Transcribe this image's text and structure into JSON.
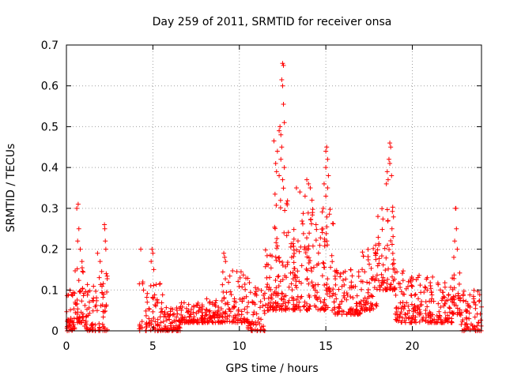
{
  "chart_data": {
    "type": "scatter",
    "title": "Day 259 of 2011, SRMTID for receiver onsa",
    "xlabel": "GPS time / hours",
    "ylabel": "SRMTID / TECUs",
    "xlim": [
      0,
      24
    ],
    "ylim": [
      0,
      0.7
    ],
    "grid": true,
    "marker": "plus",
    "series_color": "#ff0000",
    "xticks": [
      0,
      5,
      10,
      15,
      20
    ],
    "xtick_labels": [
      "0",
      "5",
      "10",
      "15",
      "20"
    ],
    "yticks": [
      0,
      0.1,
      0.2,
      0.3,
      0.4,
      0.5,
      0.6,
      0.7
    ],
    "ytick_labels": [
      "0",
      "0.1",
      "0.2",
      "0.3",
      "0.4",
      "0.5",
      "0.6",
      "0.7"
    ],
    "density_segments": [
      {
        "t0": 0.0,
        "t1": 0.5,
        "lo": 0.0,
        "hi": 0.1,
        "n": 40
      },
      {
        "t0": 0.5,
        "t1": 1.0,
        "lo": 0.02,
        "hi": 0.16,
        "n": 40
      },
      {
        "t0": 1.0,
        "t1": 1.6,
        "lo": 0.0,
        "hi": 0.12,
        "n": 40
      },
      {
        "t0": 1.6,
        "t1": 2.4,
        "lo": 0.0,
        "hi": 0.15,
        "n": 45
      },
      {
        "t0": 4.2,
        "t1": 4.6,
        "lo": 0.0,
        "hi": 0.12,
        "n": 14
      },
      {
        "t0": 4.6,
        "t1": 5.6,
        "lo": 0.0,
        "hi": 0.12,
        "n": 60
      },
      {
        "t0": 5.6,
        "t1": 6.6,
        "lo": 0.0,
        "hi": 0.06,
        "n": 70
      },
      {
        "t0": 6.6,
        "t1": 8.0,
        "lo": 0.02,
        "hi": 0.07,
        "n": 90
      },
      {
        "t0": 8.0,
        "t1": 9.0,
        "lo": 0.02,
        "hi": 0.08,
        "n": 60
      },
      {
        "t0": 9.0,
        "t1": 10.5,
        "lo": 0.02,
        "hi": 0.15,
        "n": 90
      },
      {
        "t0": 10.5,
        "t1": 11.5,
        "lo": 0.0,
        "hi": 0.13,
        "n": 60
      },
      {
        "t0": 11.5,
        "t1": 12.0,
        "lo": 0.05,
        "hi": 0.2,
        "n": 35
      },
      {
        "t0": 12.0,
        "t1": 12.8,
        "lo": 0.05,
        "hi": 0.35,
        "n": 70
      },
      {
        "t0": 12.8,
        "t1": 13.5,
        "lo": 0.05,
        "hi": 0.25,
        "n": 55
      },
      {
        "t0": 13.5,
        "t1": 14.5,
        "lo": 0.05,
        "hi": 0.3,
        "n": 70
      },
      {
        "t0": 14.5,
        "t1": 15.5,
        "lo": 0.05,
        "hi": 0.3,
        "n": 65
      },
      {
        "t0": 15.5,
        "t1": 17.0,
        "lo": 0.04,
        "hi": 0.15,
        "n": 90
      },
      {
        "t0": 17.0,
        "t1": 18.0,
        "lo": 0.05,
        "hi": 0.22,
        "n": 70
      },
      {
        "t0": 18.0,
        "t1": 18.6,
        "lo": 0.1,
        "hi": 0.3,
        "n": 40
      },
      {
        "t0": 18.6,
        "t1": 19.0,
        "lo": 0.1,
        "hi": 0.35,
        "n": 30
      },
      {
        "t0": 19.0,
        "t1": 20.0,
        "lo": 0.02,
        "hi": 0.15,
        "n": 65
      },
      {
        "t0": 20.0,
        "t1": 21.5,
        "lo": 0.02,
        "hi": 0.14,
        "n": 90
      },
      {
        "t0": 21.5,
        "t1": 22.3,
        "lo": 0.02,
        "hi": 0.12,
        "n": 50
      },
      {
        "t0": 22.3,
        "t1": 22.8,
        "lo": 0.04,
        "hi": 0.15,
        "n": 35
      },
      {
        "t0": 22.8,
        "t1": 24.0,
        "lo": 0.0,
        "hi": 0.1,
        "n": 70
      }
    ],
    "peak_points": [
      {
        "x": 0.6,
        "y": 0.3
      },
      {
        "x": 0.68,
        "y": 0.31
      },
      {
        "x": 0.72,
        "y": 0.25
      },
      {
        "x": 0.65,
        "y": 0.22
      },
      {
        "x": 0.8,
        "y": 0.2
      },
      {
        "x": 0.9,
        "y": 0.17
      },
      {
        "x": 2.2,
        "y": 0.26
      },
      {
        "x": 2.22,
        "y": 0.25
      },
      {
        "x": 2.25,
        "y": 0.22
      },
      {
        "x": 2.28,
        "y": 0.2
      },
      {
        "x": 1.8,
        "y": 0.19
      },
      {
        "x": 1.95,
        "y": 0.17
      },
      {
        "x": 4.3,
        "y": 0.2
      },
      {
        "x": 4.95,
        "y": 0.2
      },
      {
        "x": 5.0,
        "y": 0.19
      },
      {
        "x": 4.9,
        "y": 0.17
      },
      {
        "x": 5.05,
        "y": 0.15
      },
      {
        "x": 9.1,
        "y": 0.19
      },
      {
        "x": 9.15,
        "y": 0.18
      },
      {
        "x": 9.2,
        "y": 0.17
      },
      {
        "x": 12.5,
        "y": 0.655
      },
      {
        "x": 12.55,
        "y": 0.65
      },
      {
        "x": 12.45,
        "y": 0.615
      },
      {
        "x": 12.5,
        "y": 0.6
      },
      {
        "x": 12.55,
        "y": 0.555
      },
      {
        "x": 12.35,
        "y": 0.5
      },
      {
        "x": 12.6,
        "y": 0.51
      },
      {
        "x": 12.3,
        "y": 0.49
      },
      {
        "x": 12.4,
        "y": 0.48
      },
      {
        "x": 12.0,
        "y": 0.465
      },
      {
        "x": 12.45,
        "y": 0.45
      },
      {
        "x": 12.2,
        "y": 0.44
      },
      {
        "x": 12.4,
        "y": 0.42
      },
      {
        "x": 12.1,
        "y": 0.41
      },
      {
        "x": 12.15,
        "y": 0.39
      },
      {
        "x": 12.3,
        "y": 0.38
      },
      {
        "x": 12.5,
        "y": 0.37
      },
      {
        "x": 12.6,
        "y": 0.4
      },
      {
        "x": 13.9,
        "y": 0.37
      },
      {
        "x": 14.0,
        "y": 0.36
      },
      {
        "x": 14.1,
        "y": 0.35
      },
      {
        "x": 13.8,
        "y": 0.33
      },
      {
        "x": 14.2,
        "y": 0.32
      },
      {
        "x": 13.3,
        "y": 0.35
      },
      {
        "x": 13.5,
        "y": 0.34
      },
      {
        "x": 15.0,
        "y": 0.44
      },
      {
        "x": 15.05,
        "y": 0.45
      },
      {
        "x": 15.1,
        "y": 0.42
      },
      {
        "x": 15.0,
        "y": 0.4
      },
      {
        "x": 15.15,
        "y": 0.38
      },
      {
        "x": 14.9,
        "y": 0.36
      },
      {
        "x": 15.1,
        "y": 0.35
      },
      {
        "x": 15.0,
        "y": 0.33
      },
      {
        "x": 14.85,
        "y": 0.3
      },
      {
        "x": 18.7,
        "y": 0.46
      },
      {
        "x": 18.75,
        "y": 0.45
      },
      {
        "x": 18.65,
        "y": 0.42
      },
      {
        "x": 18.7,
        "y": 0.41
      },
      {
        "x": 18.55,
        "y": 0.39
      },
      {
        "x": 18.8,
        "y": 0.38
      },
      {
        "x": 18.6,
        "y": 0.37
      },
      {
        "x": 18.5,
        "y": 0.36
      },
      {
        "x": 22.5,
        "y": 0.3
      },
      {
        "x": 22.52,
        "y": 0.3
      },
      {
        "x": 22.55,
        "y": 0.25
      },
      {
        "x": 22.45,
        "y": 0.22
      },
      {
        "x": 22.6,
        "y": 0.2
      },
      {
        "x": 22.4,
        "y": 0.18
      }
    ]
  }
}
